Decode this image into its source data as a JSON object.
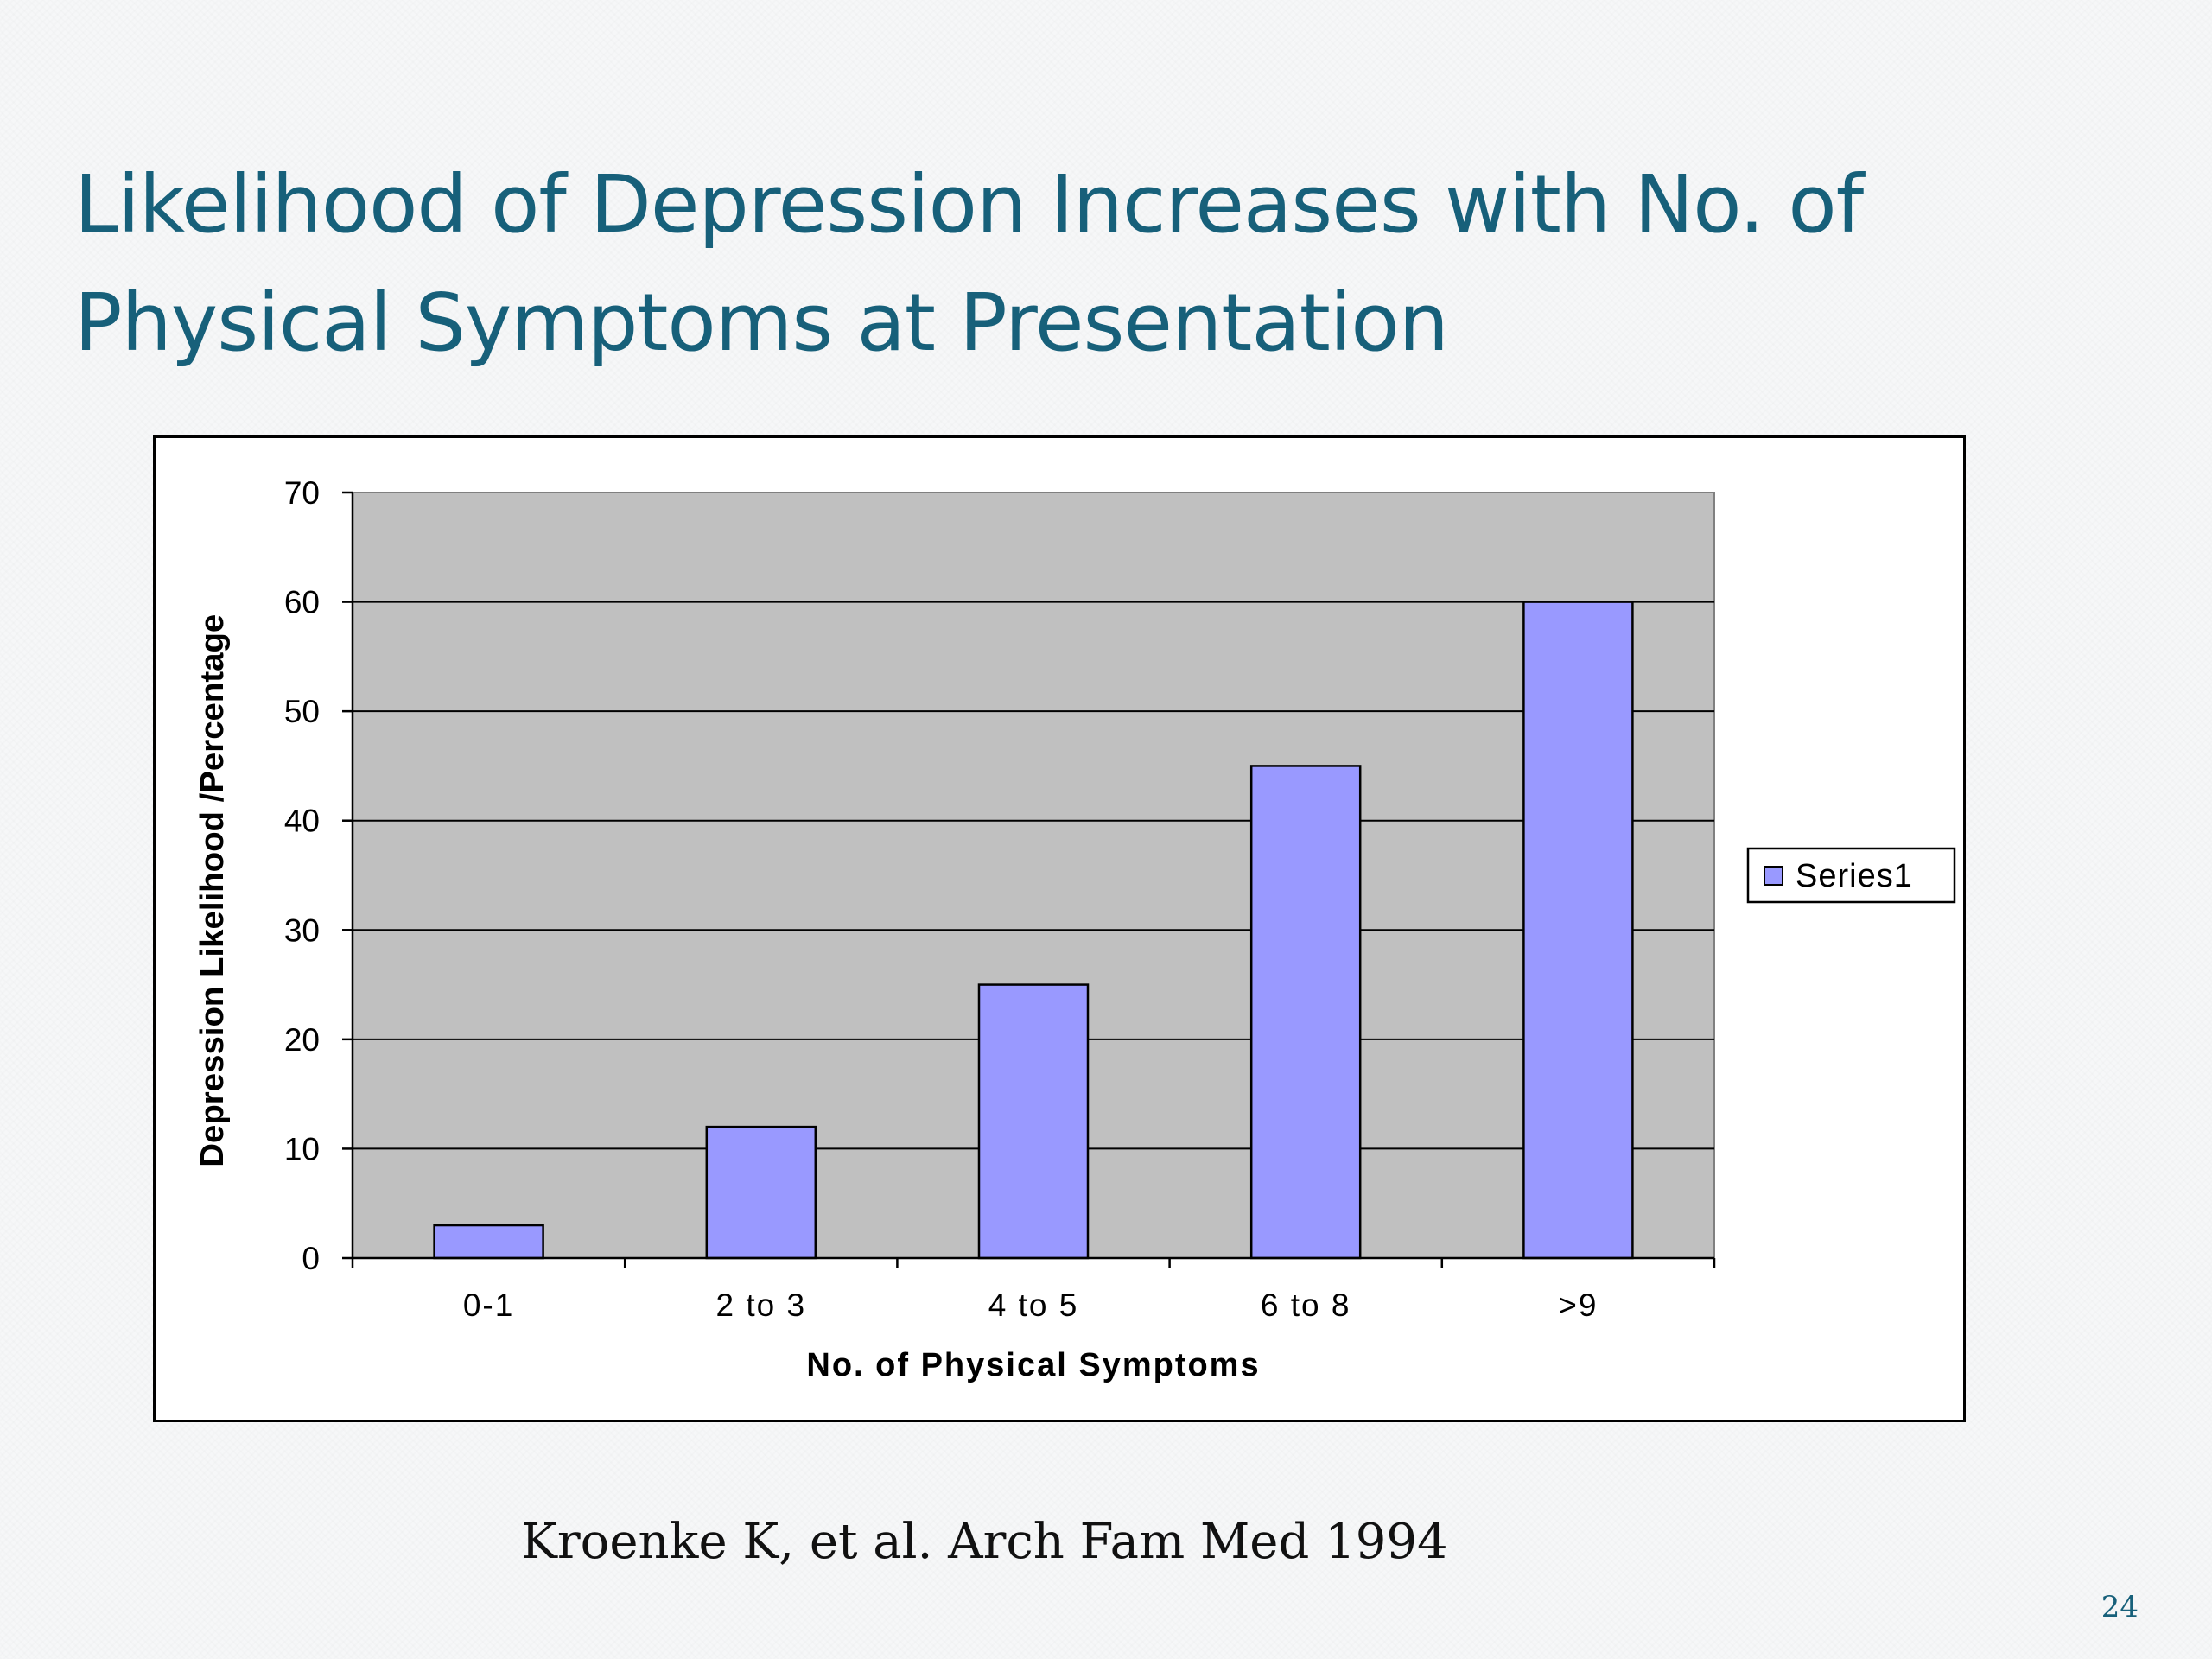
{
  "slide": {
    "title": "Likelihood of Depression Increases with No. of Physical Symptoms at Presentation",
    "citation": "Kroenke K, et al. Arch Fam Med 1994",
    "page_number": "24"
  },
  "chart_data": {
    "type": "bar",
    "title": "",
    "categories": [
      "0-1",
      "2 to 3",
      "4 to 5",
      "6 to 8",
      ">9"
    ],
    "series": [
      {
        "name": "Series1",
        "values": [
          3,
          12,
          25,
          45,
          60
        ],
        "color": "#9999ff"
      }
    ],
    "xlabel": "No. of Physical Symptoms",
    "ylabel": "Depression Likelihood /Percentage",
    "ylim": [
      0,
      70
    ],
    "yticks": [
      0,
      10,
      20,
      30,
      40,
      50,
      60,
      70
    ],
    "grid": true,
    "legend_position": "right",
    "plot_background": "#c0c0c0",
    "bar_outline": "#000000"
  }
}
